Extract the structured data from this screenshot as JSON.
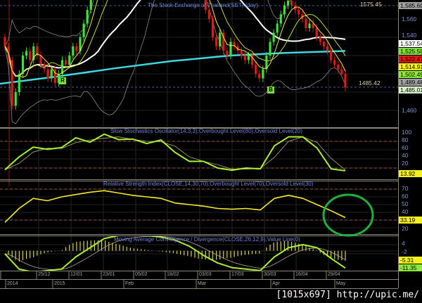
{
  "chart_data": [
    {
      "type": "candlestick",
      "title": "The Stock Exchange of Thailand(SET) (day)",
      "close": [
        1530,
        1515,
        1465,
        1480,
        1500,
        1520,
        1525,
        1515,
        1530,
        1520,
        1510,
        1505,
        1495,
        1505,
        1490,
        1500,
        1515,
        1510,
        1520,
        1530,
        1525,
        1540,
        1555,
        1570,
        1585,
        1595,
        1610,
        1620,
        1615,
        1625,
        1630,
        1620,
        1635,
        1625,
        1615,
        1630,
        1640,
        1625,
        1620,
        1630,
        1615,
        1625,
        1635,
        1620,
        1610,
        1625,
        1615,
        1630,
        1620,
        1605,
        1615,
        1625,
        1610,
        1600,
        1595,
        1585,
        1570,
        1560,
        1540,
        1530,
        1545,
        1525,
        1520,
        1535,
        1530,
        1525,
        1520,
        1515,
        1520,
        1510,
        1500,
        1495,
        1505,
        1520,
        1535,
        1545,
        1555,
        1565,
        1575,
        1580,
        1575,
        1570,
        1565,
        1560,
        1550,
        1555,
        1550,
        1540,
        1535,
        1530,
        1525,
        1515,
        1510,
        1505,
        1500,
        1485
      ],
      "ma200": [
        1489,
        1497,
        1506,
        1514,
        1520,
        1523,
        1525
      ],
      "y_ticks": [
        "1,585.60",
        "1,560",
        "1,540",
        "1,460"
      ],
      "last_values": [
        {
          "label": "1,537.54",
          "color": "#ffffff"
        },
        {
          "label": "1,525.58",
          "color": "#7ee03a"
        },
        {
          "label": "1,522.47",
          "color": "#e01818"
        },
        {
          "label": "1,514.91",
          "color": "#f4f01a"
        },
        {
          "label": "1,502.49",
          "color": "#8ee83a"
        },
        {
          "label": "1,489.48",
          "color": "#a0a0a0"
        },
        {
          "label": "1,485.01",
          "color": "#d8f0c8"
        }
      ],
      "annotations": {
        "high": "1575.45",
        "low": "1485.42"
      },
      "signals": [
        "R",
        "B"
      ],
      "colors": {
        "up": "#3ee03a",
        "down": "#e01818",
        "ma_fast": "#f4ea5a",
        "ma_mid": "#b8e040",
        "ma_slow": "#ffffff",
        "ma200": "#40d8e0",
        "bands": "#8a8a8a"
      }
    },
    {
      "type": "line",
      "title": "Slow Stochastics Oscillator(14,3,3),Overbought Level(80),Oversold Level(20)",
      "ylim": [
        0,
        100
      ],
      "levels": [
        80,
        20
      ],
      "values": [
        16,
        45,
        67,
        62,
        66,
        88,
        78,
        96,
        84,
        85,
        75,
        83,
        55,
        35,
        35,
        20,
        15,
        20,
        18,
        70,
        90,
        90,
        65,
        18,
        13.92
      ],
      "y_ticks": [
        "100",
        "80",
        "60",
        "40",
        "20"
      ],
      "last_value": "13.92",
      "colors": {
        "main": "#a8f030",
        "signal": "#b8a890",
        "last": "#f4f01a"
      }
    },
    {
      "type": "line",
      "title": "Relative Strength Index(CLOSE,14,30,70),Overbought Level(70),Oversold Level(30)",
      "levels": [
        70,
        30
      ],
      "values": [
        27,
        45,
        58,
        55,
        60,
        63,
        66,
        68,
        65,
        62,
        60,
        58,
        52,
        50,
        48,
        45,
        44,
        45,
        43,
        58,
        62,
        58,
        50,
        42,
        33.19
      ],
      "y_ticks": [
        "70",
        "60",
        "50",
        "40",
        "20"
      ],
      "last_value": "33.19",
      "colors": {
        "main": "#f4ea2a",
        "last": "#f4f01a",
        "highlight": "#20b040"
      }
    },
    {
      "type": "line",
      "title": "Moving Average Convergence / Divergence(CLOSE,26,12,9),Value Line(0)",
      "values": [
        -2,
        -12,
        -14,
        -13,
        -12,
        -4,
        2,
        8,
        10,
        10,
        10,
        9,
        7,
        3,
        -3,
        -8,
        -11,
        -12,
        -13,
        -4,
        2,
        4,
        2,
        -5,
        -11.35
      ],
      "y_ticks": [
        "4",
        "-2"
      ],
      "last_values": [
        {
          "label": "-5.31",
          "color": "#f4f01a"
        },
        {
          "label": "-11.35",
          "color": "#8ee83a"
        }
      ],
      "colors": {
        "main": "#a8f030",
        "signal": "#b8a890",
        "hist": "#d8d060"
      }
    }
  ],
  "x_axis": {
    "dates": [
      "25/12",
      "12/01",
      "23/01",
      "05/02",
      "18/02",
      "03/03",
      "17/03",
      "30/03",
      "16/04",
      "29/04"
    ],
    "months": [
      "2014",
      "2015",
      "Feb",
      "Mar",
      "Apr",
      "May"
    ]
  },
  "footer": "[1015x697] http://upic.me/"
}
